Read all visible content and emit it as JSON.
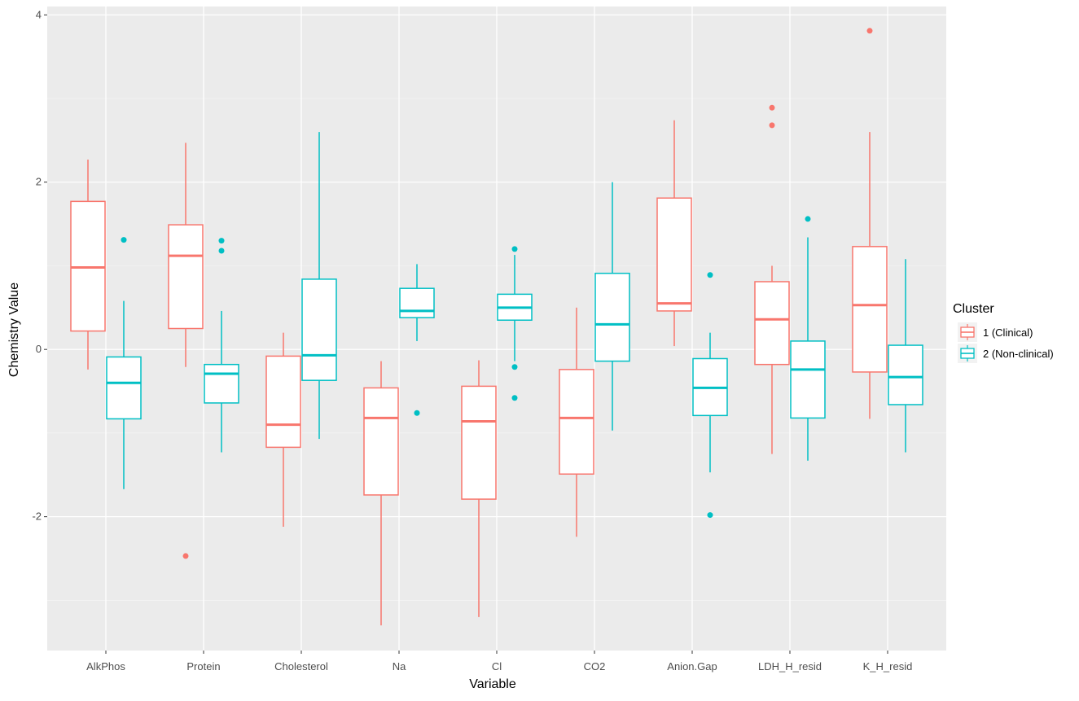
{
  "chart_data": {
    "type": "boxplot",
    "xlabel": "Variable",
    "ylabel": "Chemistry Value",
    "ylim": [
      -3.6,
      4.1
    ],
    "yticks": [
      -2,
      0,
      2,
      4
    ],
    "ytick_labels": [
      "-2",
      "0",
      "2",
      "4"
    ],
    "categories": [
      "AlkPhos",
      "Protein",
      "Cholesterol",
      "Na",
      "Cl",
      "CO2",
      "Anion.Gap",
      "LDH_H_resid",
      "K_H_resid"
    ],
    "legend": {
      "title": "Cluster",
      "placement": "right"
    },
    "series": [
      {
        "name": "1 (Clinical)",
        "color": "#F8766D",
        "boxes": [
          {
            "min": -0.24,
            "q1": 0.22,
            "median": 0.98,
            "q3": 1.77,
            "max": 2.27,
            "outliers": []
          },
          {
            "min": -0.21,
            "q1": 0.25,
            "median": 1.12,
            "q3": 1.49,
            "max": 2.47,
            "outliers": [
              -2.47
            ]
          },
          {
            "min": -2.12,
            "q1": -1.17,
            "median": -0.9,
            "q3": -0.08,
            "max": 0.2,
            "outliers": []
          },
          {
            "min": -3.3,
            "q1": -1.74,
            "median": -0.82,
            "q3": -0.46,
            "max": -0.14,
            "outliers": []
          },
          {
            "min": -3.2,
            "q1": -1.79,
            "median": -0.86,
            "q3": -0.44,
            "max": -0.13,
            "outliers": []
          },
          {
            "min": -2.24,
            "q1": -1.49,
            "median": -0.82,
            "q3": -0.24,
            "max": 0.5,
            "outliers": []
          },
          {
            "min": 0.04,
            "q1": 0.46,
            "median": 0.55,
            "q3": 1.81,
            "max": 2.74,
            "outliers": []
          },
          {
            "min": -1.25,
            "q1": -0.18,
            "median": 0.36,
            "q3": 0.81,
            "max": 1.0,
            "outliers": [
              2.68,
              2.89
            ]
          },
          {
            "min": -0.83,
            "q1": -0.27,
            "median": 0.53,
            "q3": 1.23,
            "max": 2.6,
            "outliers": [
              3.81
            ]
          }
        ]
      },
      {
        "name": "2 (Non-clinical)",
        "color": "#00BFC4",
        "boxes": [
          {
            "min": -1.67,
            "q1": -0.83,
            "median": -0.4,
            "q3": -0.09,
            "max": 0.58,
            "outliers": [
              1.31
            ]
          },
          {
            "min": -1.23,
            "q1": -0.64,
            "median": -0.29,
            "q3": -0.18,
            "max": 0.46,
            "outliers": [
              1.18,
              1.3
            ]
          },
          {
            "min": -1.07,
            "q1": -0.37,
            "median": -0.07,
            "q3": 0.84,
            "max": 2.6,
            "outliers": []
          },
          {
            "min": 0.1,
            "q1": 0.38,
            "median": 0.46,
            "q3": 0.73,
            "max": 1.02,
            "outliers": [
              -0.76
            ]
          },
          {
            "min": -0.14,
            "q1": 0.35,
            "median": 0.5,
            "q3": 0.66,
            "max": 1.13,
            "outliers": [
              1.2,
              -0.21,
              -0.58
            ]
          },
          {
            "min": -0.97,
            "q1": -0.14,
            "median": 0.3,
            "q3": 0.91,
            "max": 2.0,
            "outliers": []
          },
          {
            "min": -1.47,
            "q1": -0.79,
            "median": -0.46,
            "q3": -0.11,
            "max": 0.2,
            "outliers": [
              0.89,
              -1.98
            ]
          },
          {
            "min": -1.33,
            "q1": -0.82,
            "median": -0.24,
            "q3": 0.1,
            "max": 1.34,
            "outliers": [
              1.56
            ]
          },
          {
            "min": -1.23,
            "q1": -0.66,
            "median": -0.33,
            "q3": 0.05,
            "max": 1.08,
            "outliers": []
          }
        ]
      }
    ]
  }
}
